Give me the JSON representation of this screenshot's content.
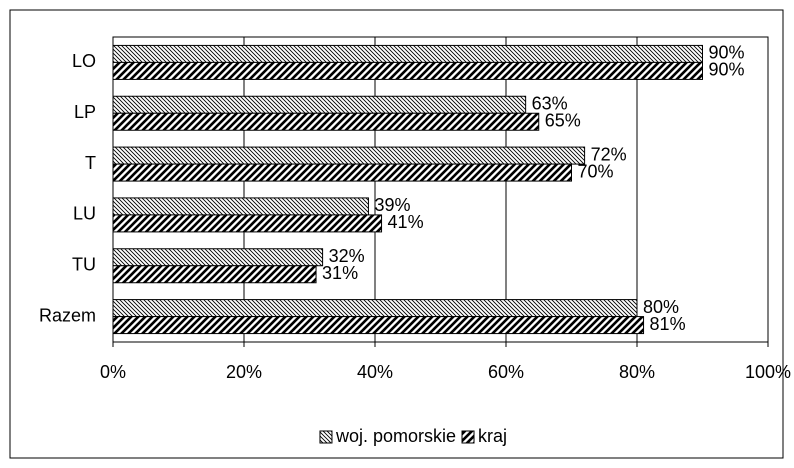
{
  "chart_data": {
    "type": "hbar",
    "categories": [
      "LO",
      "LP",
      "T",
      "LU",
      "TU",
      "Razem"
    ],
    "series": [
      {
        "name": "woj. pomorskie",
        "color": "#000000",
        "values": [
          90,
          63,
          72,
          39,
          32,
          80
        ],
        "value_labels": [
          "90%",
          "63%",
          "72%",
          "39%",
          "32%",
          "80%"
        ]
      },
      {
        "name": "kraj",
        "color": "#000000",
        "values": [
          90,
          65,
          70,
          41,
          31,
          81
        ],
        "value_labels": [
          "90%",
          "65%",
          "70%",
          "41%",
          "31%",
          "81%"
        ]
      }
    ],
    "xlim": [
      0,
      100
    ],
    "xticks": [
      {
        "value": 0,
        "label": "0%"
      },
      {
        "value": 20,
        "label": "20%"
      },
      {
        "value": 40,
        "label": "40%"
      },
      {
        "value": 60,
        "label": "60%"
      },
      {
        "value": 80,
        "label": "80%"
      },
      {
        "value": 100,
        "label": "100%"
      }
    ],
    "grid": true,
    "legend": "bottom"
  }
}
